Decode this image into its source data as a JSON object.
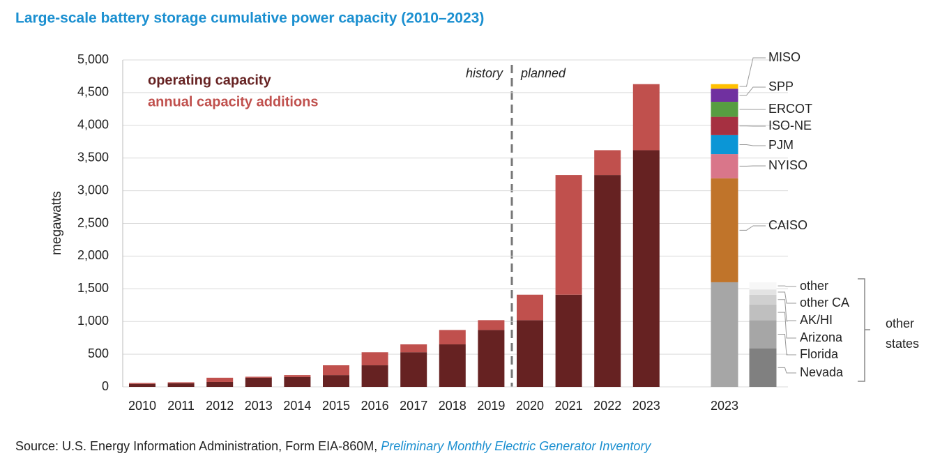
{
  "chart_data": {
    "type": "stacked_bar",
    "title": "Large-scale battery storage cumulative power capacity (2010–2023)",
    "y_label": "megawatts",
    "categories": [
      "2010",
      "2011",
      "2012",
      "2013",
      "2014",
      "2015",
      "2016",
      "2017",
      "2018",
      "2019",
      "2020",
      "2021",
      "2022",
      "2023"
    ],
    "series": [
      {
        "name": "operating capacity",
        "color": "#662222",
        "values": [
          45,
          55,
          75,
          140,
          150,
          180,
          330,
          530,
          650,
          870,
          1020,
          1410,
          3240,
          3620
        ]
      },
      {
        "name": "annual capacity additions",
        "color": "#c0504d",
        "values": [
          15,
          15,
          65,
          15,
          30,
          150,
          200,
          120,
          220,
          150,
          390,
          1830,
          380,
          1010
        ]
      }
    ],
    "ylim": [
      0,
      5000
    ],
    "yticks": [
      0,
      500,
      {
        "value": 1000,
        "label": "1,000"
      },
      {
        "value": 1500,
        "label": "1,500"
      },
      {
        "value": 2000,
        "label": "2,000"
      },
      {
        "value": 2500,
        "label": "2,500"
      },
      {
        "value": 3000,
        "label": "3,000"
      },
      {
        "value": 3500,
        "label": "3,500"
      },
      {
        "value": 4000,
        "label": "4,000"
      },
      {
        "value": 4500,
        "label": "4,500"
      },
      {
        "value": 5000,
        "label": "5,000"
      }
    ],
    "grid": true,
    "annotations": {
      "history": "history",
      "planned": "planned"
    },
    "breakdown": {
      "category": "2023",
      "other_states": {
        "label": "other states",
        "value": 1600,
        "color": "#a6a6a6",
        "segments": [
          {
            "name": "Nevada",
            "value": 590,
            "color": "#808080"
          },
          {
            "name": "Florida",
            "value": 430,
            "color": "#a6a6a6"
          },
          {
            "name": "Arizona",
            "value": 240,
            "color": "#bfbfbf"
          },
          {
            "name": "AK/HI",
            "value": 150,
            "color": "#d0d0d0"
          },
          {
            "name": "other CA",
            "value": 80,
            "color": "#e3e3e3"
          },
          {
            "name": "other",
            "value": 110,
            "color": "#f7f7f7"
          }
        ]
      },
      "regions": [
        {
          "name": "CAISO",
          "value": 1590,
          "color": "#c0742a"
        },
        {
          "name": "NYISO",
          "value": 370,
          "color": "#d9768a"
        },
        {
          "name": "PJM",
          "value": 290,
          "color": "#0b96d6"
        },
        {
          "name": "ISO-NE",
          "value": 280,
          "color": "#a63041"
        },
        {
          "name": "ERCOT",
          "value": 230,
          "color": "#579d41"
        },
        {
          "name": "SPP",
          "value": 200,
          "color": "#7030a0"
        },
        {
          "name": "MISO",
          "value": 70,
          "color": "#ffc000"
        }
      ]
    }
  },
  "source": {
    "text": "Source: U.S. Energy Information Administration, Form EIA-860M, ",
    "link": "Preliminary Monthly Electric Generator Inventory"
  }
}
